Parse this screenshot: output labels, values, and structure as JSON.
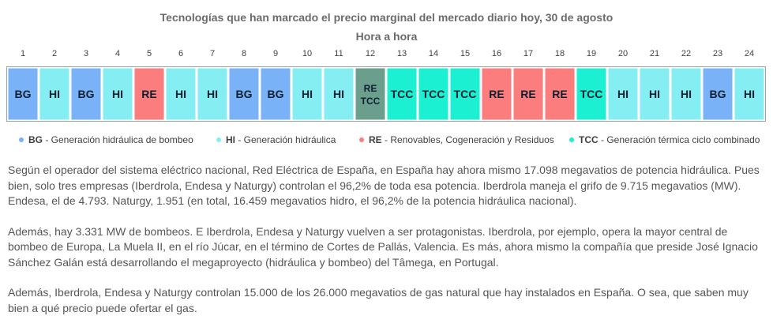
{
  "chart_data": {
    "type": "table",
    "title": "Tecnologías que han marcado el precio marginal del mercado diario hoy, 30 de agosto",
    "subtitle": "Hora a hora",
    "hours": [
      "1",
      "2",
      "3",
      "4",
      "5",
      "6",
      "7",
      "8",
      "9",
      "10",
      "11",
      "12",
      "13",
      "14",
      "15",
      "16",
      "17",
      "18",
      "19",
      "20",
      "21",
      "22",
      "23",
      "24"
    ],
    "technologies": [
      [
        "BG"
      ],
      [
        "HI"
      ],
      [
        "BG"
      ],
      [
        "HI"
      ],
      [
        "RE"
      ],
      [
        "HI"
      ],
      [
        "HI"
      ],
      [
        "BG"
      ],
      [
        "BG"
      ],
      [
        "HI"
      ],
      [
        "HI"
      ],
      [
        "RE",
        "TCC"
      ],
      [
        "TCC"
      ],
      [
        "TCC"
      ],
      [
        "TCC"
      ],
      [
        "RE"
      ],
      [
        "RE"
      ],
      [
        "RE"
      ],
      [
        "TCC"
      ],
      [
        "HI"
      ],
      [
        "HI"
      ],
      [
        "HI"
      ],
      [
        "BG"
      ],
      [
        "HI"
      ]
    ],
    "colors": {
      "BG": "#7ab2f7",
      "HI": "#85eef2",
      "RE": "#fb7d7d",
      "TCC": "#1cf0d2",
      "MIX": "#6b9e8d"
    },
    "legend": [
      {
        "code": "BG",
        "label": " - Generación hidráulica de bombeo",
        "color": "#7ab2f7"
      },
      {
        "code": "HI",
        "label": " - Generación hidráulica",
        "color": "#85eef2"
      },
      {
        "code": "RE",
        "label": " - Renovables, Cogeneración y Residuos",
        "color": "#fb7d7d"
      },
      {
        "code": "TCC",
        "label": " - Generación térmica ciclo combinado",
        "color": "#1cf0d2"
      }
    ]
  },
  "paragraphs": [
    "Según el operador del sistema eléctrico nacional, Red Eléctrica de España, en España hay ahora mismo 17.098 megavatios de potencia hidráulica. Pues bien, solo tres empresas (Iberdrola, Endesa y Naturgy) controlan el 96,2% de toda esa potencia. Iberdrola maneja el grifo de 9.715 megavatios (MW). Endesa, el de 4.793. Naturgy, 1.951 (en total, 16.459 megavatios hidro, el 96,2% de la potencia hidráulica nacional).",
    "Además, hay 3.331 MW de bombeos. E Iberdrola, Endesa y Naturgy vuelven a ser protagonistas. Iberdrola, por ejemplo, opera la mayor central de bombeo de Europa, La Muela II, en el río Júcar, en el término de Cortes de Pallás, Valencia. Es más, ahora mismo la compañía que preside José Ignacio Sánchez Galán está desarrollando el megaproyecto (hidráulica y bombeo) del Tâmega, en Portugal.",
    "Además, Iberdrola, Endesa y Naturgy controlan 15.000 de los 26.000 megavatios de gas natural que hay instalados en España. O sea, que saben muy bien a qué precio puede ofertar el gas."
  ]
}
